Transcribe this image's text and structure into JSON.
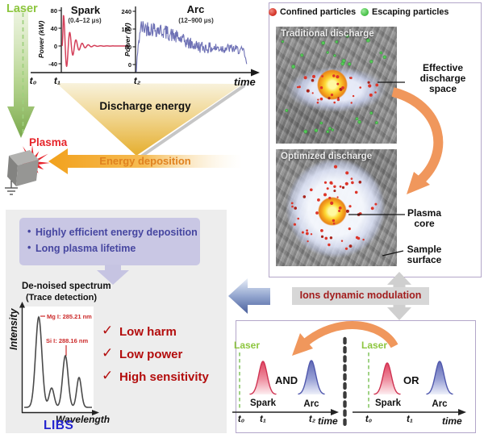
{
  "top": {
    "laser": "Laser",
    "spark": {
      "title": "Spark",
      "range": "(0.4–12 μs)",
      "ylabel": "Power (kW)",
      "yticks": [
        "80",
        "40",
        "0",
        "-40"
      ]
    },
    "arc": {
      "title": "Arc",
      "range": "(12–900 μs)",
      "ylabel": "Power (W)",
      "yticks": [
        "240",
        "160",
        "80",
        "0"
      ]
    },
    "t0": "t₀",
    "t1": "t₁",
    "t2": "t₂",
    "time": "time",
    "discharge": "Discharge energy",
    "deposition": "Energy deposition",
    "plasma": "Plasma"
  },
  "right_box": {
    "legend_confined": "Confined particles",
    "legend_escaping": "Escaping particles",
    "traditional_title": "Traditional discharge",
    "optimized_title": "Optimized discharge",
    "effective_1": "Effective",
    "effective_2": "discharge",
    "effective_3": "space",
    "core_1": "Plasma",
    "core_2": "core",
    "surface_1": "Sample",
    "surface_2": "surface"
  },
  "modulation": "Ions dynamic modulation",
  "bottom_left": {
    "bullet_char": "•",
    "bullet1": "Highly efficient energy deposition",
    "bullet2": "Long plasma lifetime",
    "spec_title": "De-noised spectrum",
    "spec_sub": "(Trace detection)",
    "ylabel": "Intensity",
    "xlabel": "Wavelength",
    "mg": "Mg I: 285.21 nm",
    "si": "Si I: 288.16 nm",
    "check_mark": "✓",
    "check1": "Low harm",
    "check2": "Low power",
    "check3": "High sensitivity",
    "libs": "LIBS"
  },
  "bottom_right": {
    "left": {
      "laser": "Laser",
      "spark": "Spark",
      "arc": "Arc",
      "mode": "AND",
      "t0": "t₀",
      "t1": "t₁",
      "t2": "t₂",
      "time": "time"
    },
    "right": {
      "laser": "Laser",
      "spark": "Spark",
      "arc": "Arc",
      "mode": "OR",
      "t0": "t₀",
      "t1": "t₁",
      "time": "time"
    }
  },
  "colors": {
    "laser_green": "#8dc63f",
    "spark_red": "#d4405a",
    "arc_blue": "#6e71b5",
    "triangle_gold": "#e5ae2e",
    "deposition_orange": "#f2a11c",
    "plasma_red": "#e6242a",
    "bullet_box": "#c9c7e4",
    "bullet_text": "#4646a0",
    "check_red": "#b30d0d",
    "libs_blue": "#2424cf",
    "modulation_red": "#a21d1d",
    "box_border": "#b3a6c9",
    "confined_dot": "#d6372b",
    "escaping_dot": "#4cc44c"
  }
}
